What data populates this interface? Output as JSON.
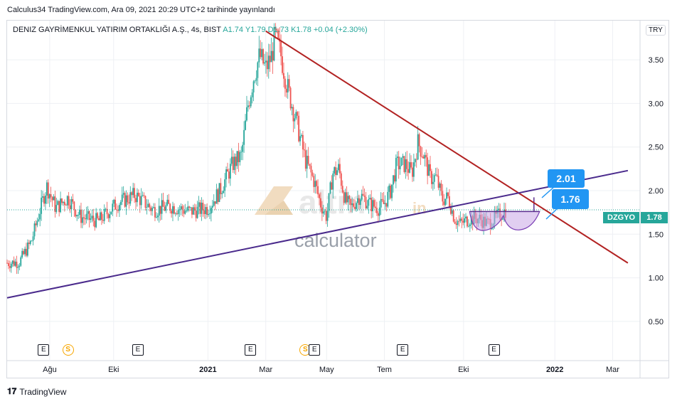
{
  "header": {
    "text": "Calculus34 TradingView.com, Ara 09, 2021 20:29 UTC+2 tarihinde yayınlandı"
  },
  "symbol": {
    "name": "DENIZ GAYRİMENKUL YATIRIM ORTAKLIĞI A.Ş., 4s, BIST",
    "ohlc": "A1.74  Y1.79  D1.73  K1.78  +0.04 (+2.30%)",
    "currency": "TRY",
    "ticker": "DZGYO",
    "last_price": "1.78"
  },
  "watermark": {
    "brand": "altin",
    "suffix": "in",
    "sub": "calculator"
  },
  "callouts": {
    "upper": "2.01",
    "lower": "1.76"
  },
  "footer": {
    "brand": "TradingView"
  },
  "colors": {
    "up": "#26a69a",
    "down": "#ef5350",
    "resistance": "#b22222",
    "support": "#4a2a8c",
    "pattern": "#c9a6e6",
    "callout": "#2196f3"
  },
  "chart_data": {
    "type": "candlestick",
    "title": "DENIZ GAYRİMENKUL YATIRIM ORTAKLIĞI A.Ş., 4s, BIST",
    "x_ticks": [
      "Ağu",
      "Eki",
      "2021",
      "Mar",
      "May",
      "Tem",
      "Eki",
      "2022",
      "Mar"
    ],
    "y_ticks": [
      "3.50",
      "3.00",
      "2.50",
      "2.00",
      "1.50",
      "1.00",
      "0.50"
    ],
    "ylim": [
      0.05,
      3.95
    ],
    "price_path": [
      [
        0,
        1.17
      ],
      [
        4,
        1.18
      ],
      [
        8,
        1.42
      ],
      [
        11,
        1.8
      ],
      [
        13,
        2.05
      ],
      [
        16,
        1.8
      ],
      [
        20,
        1.92
      ],
      [
        24,
        1.7
      ],
      [
        30,
        1.65
      ],
      [
        36,
        1.85
      ],
      [
        42,
        1.95
      ],
      [
        48,
        1.78
      ],
      [
        54,
        1.82
      ],
      [
        60,
        1.76
      ],
      [
        66,
        1.8
      ],
      [
        70,
        2.0
      ],
      [
        74,
        2.3
      ],
      [
        77,
        2.4
      ],
      [
        79,
        2.95
      ],
      [
        81,
        3.3
      ],
      [
        83,
        3.55
      ],
      [
        85,
        3.4
      ],
      [
        87,
        3.55
      ],
      [
        88,
        3.78
      ],
      [
        90,
        3.55
      ],
      [
        92,
        3.2
      ],
      [
        95,
        2.8
      ],
      [
        98,
        2.35
      ],
      [
        101,
        2.1
      ],
      [
        103,
        1.85
      ],
      [
        105,
        1.7
      ],
      [
        107,
        2.2
      ],
      [
        109,
        2.25
      ],
      [
        111,
        1.9
      ],
      [
        113,
        1.8
      ],
      [
        116,
        1.95
      ],
      [
        119,
        1.85
      ],
      [
        122,
        1.8
      ],
      [
        124,
        1.85
      ],
      [
        126,
        2.0
      ],
      [
        128,
        2.3
      ],
      [
        131,
        2.3
      ],
      [
        133,
        2.2
      ],
      [
        135,
        2.55
      ],
      [
        137,
        2.4
      ],
      [
        139,
        2.15
      ],
      [
        141,
        2.15
      ],
      [
        143,
        1.9
      ],
      [
        145,
        1.92
      ],
      [
        147,
        1.68
      ],
      [
        149,
        1.62
      ],
      [
        152,
        1.68
      ],
      [
        155,
        1.68
      ],
      [
        158,
        1.62
      ],
      [
        161,
        1.7
      ],
      [
        164,
        1.78
      ]
    ],
    "x_range": [
      0,
      208
    ],
    "x_tick_positions": [
      14,
      35,
      66,
      85,
      105,
      124,
      150,
      180,
      199
    ],
    "resistance_line": {
      "from": [
        85,
        3.83
      ],
      "to": [
        204,
        1.17
      ],
      "color": "#b22222"
    },
    "support_line": {
      "from": [
        0,
        0.77
      ],
      "to": [
        204,
        2.23
      ],
      "color": "#4a2a8c"
    },
    "current_price_line": 1.78,
    "pattern": {
      "type": "cup and handle",
      "range_x": [
        152,
        175
      ],
      "top": 1.76,
      "bottom": 1.55
    },
    "target_labels": [
      "2.01",
      "1.76"
    ],
    "events": [
      {
        "type": "E",
        "x": 12
      },
      {
        "type": "S",
        "x": 20
      },
      {
        "type": "E",
        "x": 43
      },
      {
        "type": "E",
        "x": 80
      },
      {
        "type": "S",
        "x": 98
      },
      {
        "type": "E",
        "x": 101
      },
      {
        "type": "E",
        "x": 130
      },
      {
        "type": "E",
        "x": 160
      }
    ],
    "grid": true,
    "legend": "none"
  }
}
